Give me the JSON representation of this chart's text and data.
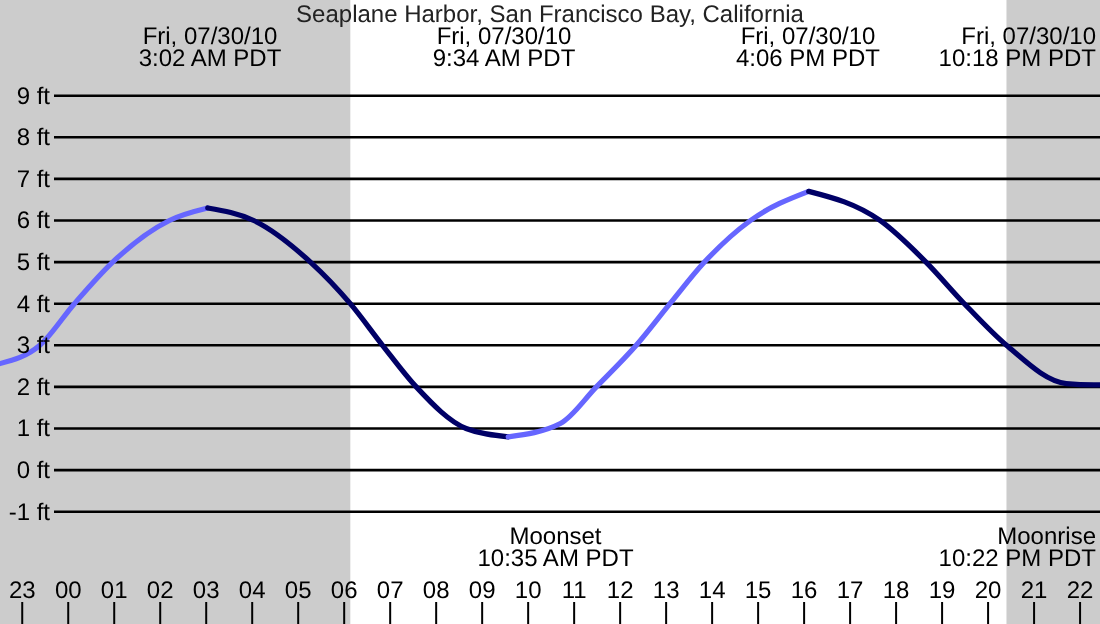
{
  "chart_data": {
    "type": "line",
    "title": "Seaplane Harbor, San Francisco Bay, California",
    "xlim": [
      "--07-29T22:31",
      "--07-30T22:26"
    ],
    "ylim": [
      -3.7,
      11.3
    ],
    "xticks": [
      {
        "value": "--07-29T23:00",
        "label": "23"
      },
      {
        "value": "--07-30T00:00",
        "label": "00"
      },
      {
        "value": "--07-30T01:00",
        "label": "01"
      },
      {
        "value": "--07-30T02:00",
        "label": "02"
      },
      {
        "value": "--07-30T03:00",
        "label": "03"
      },
      {
        "value": "--07-30T04:00",
        "label": "04"
      },
      {
        "value": "--07-30T05:00",
        "label": "05"
      },
      {
        "value": "--07-30T06:00",
        "label": "06"
      },
      {
        "value": "--07-30T07:00",
        "label": "07"
      },
      {
        "value": "--07-30T08:00",
        "label": "08"
      },
      {
        "value": "--07-30T09:00",
        "label": "09"
      },
      {
        "value": "--07-30T10:00",
        "label": "10"
      },
      {
        "value": "--07-30T11:00",
        "label": "11"
      },
      {
        "value": "--07-30T12:00",
        "label": "12"
      },
      {
        "value": "--07-30T13:00",
        "label": "13"
      },
      {
        "value": "--07-30T14:00",
        "label": "14"
      },
      {
        "value": "--07-30T15:00",
        "label": "15"
      },
      {
        "value": "--07-30T16:00",
        "label": "16"
      },
      {
        "value": "--07-30T17:00",
        "label": "17"
      },
      {
        "value": "--07-30T18:00",
        "label": "18"
      },
      {
        "value": "--07-30T19:00",
        "label": "19"
      },
      {
        "value": "--07-30T20:00",
        "label": "20"
      },
      {
        "value": "--07-30T21:00",
        "label": "21"
      },
      {
        "value": "--07-30T22:00",
        "label": "22"
      }
    ],
    "yticks": [
      {
        "value": -1,
        "label": "-1 ft"
      },
      {
        "value": 0,
        "label": "0 ft"
      },
      {
        "value": 1,
        "label": "1 ft"
      },
      {
        "value": 2,
        "label": "2 ft"
      },
      {
        "value": 3,
        "label": "3 ft"
      },
      {
        "value": 4,
        "label": "4 ft"
      },
      {
        "value": 5,
        "label": "5 ft"
      },
      {
        "value": 6,
        "label": "6 ft"
      },
      {
        "value": 7,
        "label": "7 ft"
      },
      {
        "value": 8,
        "label": "8 ft"
      },
      {
        "value": 9,
        "label": "9 ft"
      }
    ],
    "grid": "y",
    "line_style": "solid",
    "series": [
      {
        "color": "#6666ff",
        "x": [
          "--07-29T22:31",
          "--07-29T23:23",
          "--07-30T00:08",
          "--07-30T00:58",
          "--07-30T02:12",
          "--07-30T03:02"
        ],
        "values": [
          2.56,
          3,
          4,
          5,
          6,
          6.3
        ]
      },
      {
        "color": "#000066",
        "x": [
          "--07-30T03:02",
          "--07-30T04:02",
          "--07-30T05:16",
          "--07-30T06:08",
          "--07-30T06:50",
          "--07-30T07:34",
          "--07-30T08:39",
          "--07-30T09:34"
        ],
        "values": [
          6.3,
          6,
          5,
          4,
          3,
          2,
          1,
          0.8
        ]
      },
      {
        "color": "#6666ff",
        "x": [
          "--07-30T09:34",
          "--07-30T10:42",
          "--07-30T11:29",
          "--07-30T12:21",
          "--07-30T13:05",
          "--07-30T13:50",
          "--07-30T14:50",
          "--07-30T16:06"
        ],
        "values": [
          0.8,
          1.12,
          2,
          3,
          4,
          5,
          6,
          6.7
        ]
      },
      {
        "color": "#000066",
        "x": [
          "--07-30T16:06",
          "--07-30T17:39",
          "--07-30T18:39",
          "--07-30T19:29",
          "--07-30T20:24",
          "--07-30T21:42",
          "--07-30T22:18",
          "--07-30T22:26"
        ],
        "values": [
          6.7,
          6,
          5,
          4,
          3,
          2.08,
          2.05,
          2.05
        ]
      }
    ],
    "bands": [
      {
        "axis": "x",
        "from": "--07-29T22:31",
        "to": "--07-30T06:08",
        "color": "#cccccc"
      },
      {
        "axis": "x",
        "from": "--07-30T20:24",
        "to": "--07-30T22:26",
        "color": "#cccccc"
      }
    ],
    "annotations": [
      "Fri, 07/30/10\n3:02 AM PDT",
      "Fri, 07/30/10\n9:34 AM PDT",
      "Fri, 07/30/10\n4:06 PM PDT",
      "Fri, 07/30/10\n10:18 PM PDT",
      "Moonset\n10:35 AM PDT",
      "Moonrise\n10:22 PM PDT"
    ]
  }
}
